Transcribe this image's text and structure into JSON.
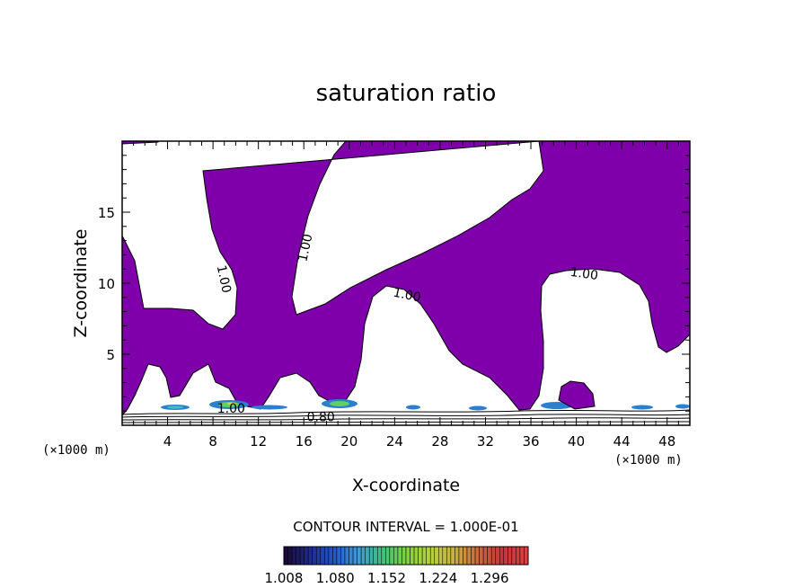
{
  "chart_data": {
    "type": "contour",
    "title": "saturation ratio",
    "xlabel": "X-coordinate",
    "ylabel": "Z-coordinate",
    "x_unit_left": "(×1000 m)",
    "x_unit_right": "(×1000 m)",
    "x_ticks": [
      4,
      8,
      12,
      16,
      20,
      24,
      28,
      32,
      36,
      40,
      44,
      48
    ],
    "y_ticks": [
      5,
      10,
      15
    ],
    "xlim": [
      0,
      50
    ],
    "ylim": [
      0,
      20
    ],
    "contour_interval_label": "CONTOUR INTERVAL = 1.000E-01",
    "filled_level": 1.0,
    "fill_color": "#7f00aa",
    "contour_labels": [
      {
        "text": "1.00",
        "x": 9.0,
        "z": 10.3,
        "rotate": 78
      },
      {
        "text": "1.00",
        "x": 16.1,
        "z": 12.5,
        "rotate": -78
      },
      {
        "text": "1.00",
        "x": 25.1,
        "z": 9.2,
        "rotate": 12
      },
      {
        "text": "1.00",
        "x": 40.7,
        "z": 10.7,
        "rotate": 8
      },
      {
        "text": "1.00",
        "x": 9.6,
        "z": 1.2,
        "rotate": 0
      },
      {
        "text": "0.80",
        "x": 17.5,
        "z": 0.6,
        "rotate": 0
      }
    ],
    "colorbar": {
      "labels": [
        "1.008",
        "1.080",
        "1.152",
        "1.224",
        "1.296"
      ],
      "range": [
        1.008,
        1.35
      ],
      "colors": [
        "#1a0a3a",
        "#1f2a8c",
        "#2255cc",
        "#3d9ad8",
        "#3fbf7f",
        "#7fd040",
        "#b4d23a",
        "#c8b040",
        "#c86a3c",
        "#c8333a",
        "#d94040"
      ]
    }
  }
}
